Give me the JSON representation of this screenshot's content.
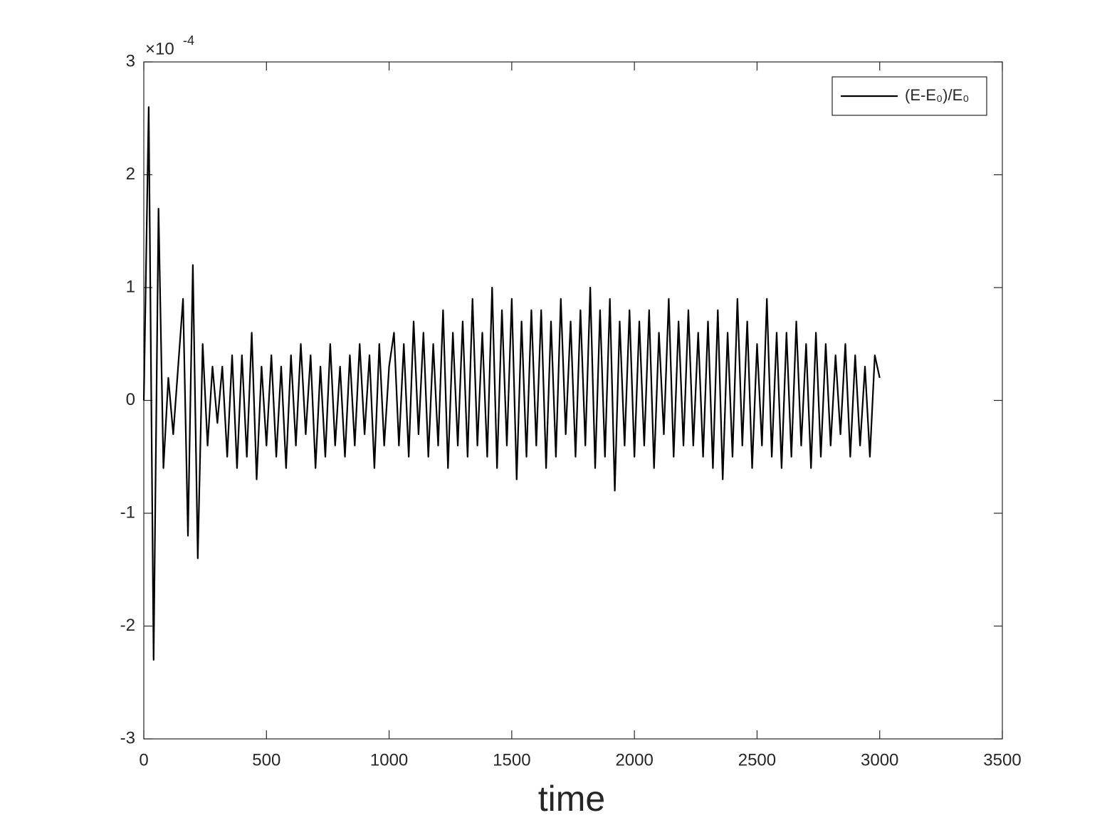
{
  "chart_data": {
    "type": "line",
    "x_label": "time",
    "y_scale_base": "×10",
    "y_scale_exponent": "-4",
    "xlim": [
      0,
      3500
    ],
    "xticks": [
      0,
      500,
      1000,
      1500,
      2000,
      2500,
      3000,
      3500
    ],
    "ylim": [
      -3,
      3
    ],
    "yticks": [
      -3,
      -2,
      -1,
      0,
      1,
      2,
      3
    ],
    "legend": "top-right",
    "x": [
      0,
      20,
      40,
      60,
      80,
      100,
      120,
      140,
      160,
      180,
      200,
      220,
      240,
      260,
      280,
      300,
      320,
      340,
      360,
      380,
      400,
      420,
      440,
      460,
      480,
      500,
      520,
      540,
      560,
      580,
      600,
      620,
      640,
      660,
      680,
      700,
      720,
      740,
      760,
      780,
      800,
      820,
      840,
      860,
      880,
      900,
      920,
      940,
      960,
      980,
      1000,
      1020,
      1040,
      1060,
      1080,
      1100,
      1120,
      1140,
      1160,
      1180,
      1200,
      1220,
      1240,
      1260,
      1280,
      1300,
      1320,
      1340,
      1360,
      1380,
      1400,
      1420,
      1440,
      1460,
      1480,
      1500,
      1520,
      1540,
      1560,
      1580,
      1600,
      1620,
      1640,
      1660,
      1680,
      1700,
      1720,
      1740,
      1760,
      1780,
      1800,
      1820,
      1840,
      1860,
      1880,
      1900,
      1920,
      1940,
      1960,
      1980,
      2000,
      2020,
      2040,
      2060,
      2080,
      2100,
      2120,
      2140,
      2160,
      2180,
      2200,
      2220,
      2240,
      2260,
      2280,
      2300,
      2320,
      2340,
      2360,
      2380,
      2400,
      2420,
      2440,
      2460,
      2480,
      2500,
      2520,
      2540,
      2560,
      2580,
      2600,
      2620,
      2640,
      2660,
      2680,
      2700,
      2720,
      2740,
      2760,
      2780,
      2800,
      2820,
      2840,
      2860,
      2880,
      2900,
      2920,
      2940,
      2960,
      2980,
      3000
    ],
    "series": [
      {
        "name": "(E-E₀)/E₀",
        "color": "#000000",
        "values": [
          0,
          2.6,
          -2.3,
          1.7,
          -0.6,
          0.2,
          -0.3,
          0.3,
          0.9,
          -1.2,
          1.2,
          -1.4,
          0.5,
          -0.4,
          0.3,
          -0.2,
          0.3,
          -0.5,
          0.4,
          -0.6,
          0.4,
          -0.5,
          0.6,
          -0.7,
          0.3,
          -0.4,
          0.4,
          -0.5,
          0.3,
          -0.6,
          0.4,
          -0.4,
          0.5,
          -0.3,
          0.4,
          -0.6,
          0.3,
          -0.5,
          0.5,
          -0.4,
          0.3,
          -0.5,
          0.4,
          -0.4,
          0.5,
          -0.3,
          0.4,
          -0.6,
          0.5,
          -0.4,
          0.3,
          0.6,
          -0.4,
          0.5,
          -0.5,
          0.7,
          -0.3,
          0.6,
          -0.5,
          0.5,
          -0.4,
          0.8,
          -0.6,
          0.6,
          -0.4,
          0.7,
          -0.5,
          0.9,
          -0.4,
          0.6,
          -0.5,
          1.0,
          -0.6,
          0.8,
          -0.4,
          0.9,
          -0.7,
          0.7,
          -0.5,
          0.8,
          -0.4,
          0.8,
          -0.6,
          0.7,
          -0.5,
          0.9,
          -0.3,
          0.7,
          -0.5,
          0.8,
          -0.4,
          1.0,
          -0.6,
          0.8,
          -0.5,
          0.9,
          -0.8,
          0.7,
          -0.4,
          0.8,
          -0.5,
          0.7,
          -0.4,
          0.8,
          -0.6,
          0.6,
          -0.3,
          0.9,
          -0.5,
          0.7,
          -0.4,
          0.8,
          -0.4,
          0.6,
          -0.5,
          0.7,
          -0.6,
          0.8,
          -0.7,
          0.6,
          -0.5,
          0.9,
          -0.4,
          0.7,
          -0.6,
          0.5,
          -0.4,
          0.9,
          -0.5,
          0.6,
          -0.6,
          0.6,
          -0.5,
          0.7,
          -0.4,
          0.5,
          -0.6,
          0.6,
          -0.5,
          0.5,
          -0.4,
          0.4,
          -0.3,
          0.5,
          -0.5,
          0.4,
          -0.4,
          0.3,
          -0.5,
          0.4,
          0.2
        ]
      }
    ]
  }
}
